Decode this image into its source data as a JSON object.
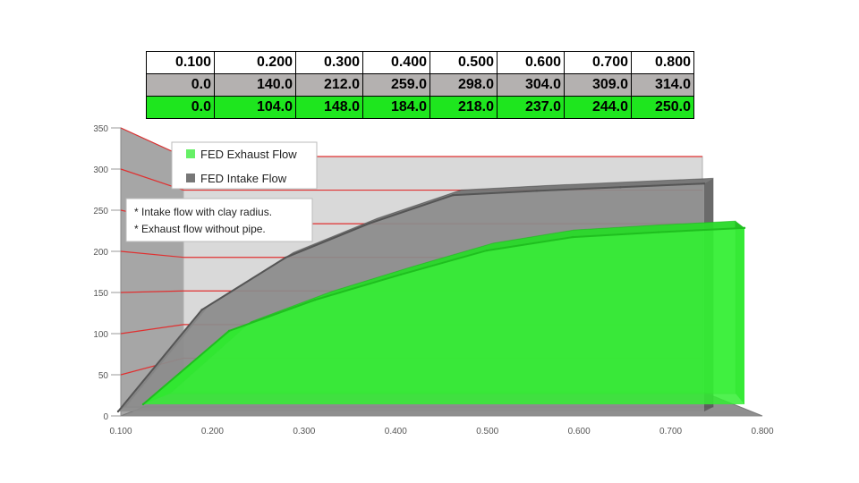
{
  "table": {
    "rows": [
      [
        "0.100",
        "0.200",
        "0.300",
        "0.400",
        "0.500",
        "0.600",
        "0.700",
        "0.800"
      ],
      [
        "0.0",
        "140.0",
        "212.0",
        "259.0",
        "298.0",
        "304.0",
        "309.0",
        "314.0"
      ],
      [
        "0.0",
        "104.0",
        "148.0",
        "184.0",
        "218.0",
        "237.0",
        "244.0",
        "250.0"
      ]
    ]
  },
  "notes": [
    "* Intake flow with clay radius.",
    "* Exhaust flow without pipe."
  ],
  "chart_data": {
    "type": "area",
    "x": [
      0.1,
      0.2,
      0.3,
      0.4,
      0.5,
      0.6,
      0.7,
      0.8
    ],
    "series": [
      {
        "name": "FED Exhaust Flow",
        "values": [
          0.0,
          104.0,
          148.0,
          184.0,
          218.0,
          237.0,
          244.0,
          250.0
        ],
        "color": "#33ee33"
      },
      {
        "name": "FED Intake Flow",
        "values": [
          0.0,
          140.0,
          212.0,
          259.0,
          298.0,
          304.0,
          309.0,
          314.0
        ],
        "color": "#777777"
      }
    ],
    "x_ticks": [
      "0.100",
      "0.200",
      "0.300",
      "0.400",
      "0.500",
      "0.600",
      "0.700",
      "0.800"
    ],
    "y_ticks": [
      "0",
      "50",
      "100",
      "150",
      "200",
      "250",
      "300",
      "350"
    ],
    "ylim": [
      0,
      350
    ],
    "xlim": [
      0.1,
      0.8
    ],
    "grid": true,
    "gridline_color": "#e03030",
    "legend_position": "top-left",
    "projection": "3d"
  }
}
